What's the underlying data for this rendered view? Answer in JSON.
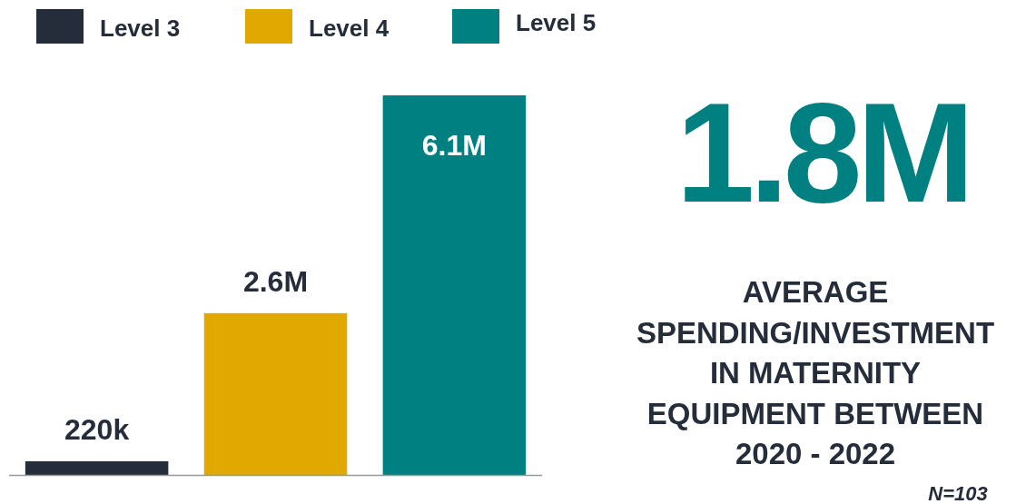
{
  "chart_data": {
    "type": "bar",
    "title": "AVERAGE SPENDING/INVESTMENT IN MATERNITY EQUIPMENT BETWEEN 2020 - 2022",
    "categories": [
      "Level 3",
      "Level 4",
      "Level 5"
    ],
    "values": [
      220000,
      2600000,
      6100000
    ],
    "value_labels": [
      "220k",
      "2.6M",
      "6.1M"
    ],
    "colors": [
      "#252d3a",
      "#e0a800",
      "#008080"
    ],
    "tick_labels": false,
    "annotations": [
      "1.8M",
      "N=103"
    ]
  }
}
